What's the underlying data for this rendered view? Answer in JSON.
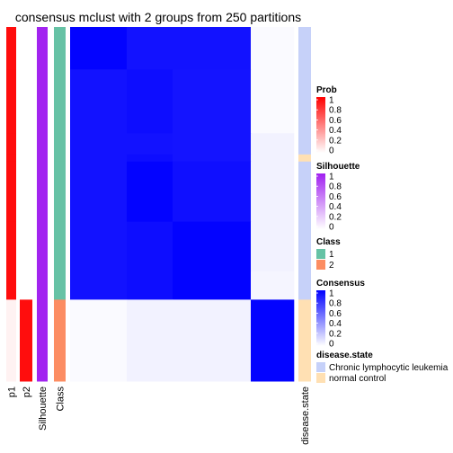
{
  "chart_data": {
    "type": "heatmap",
    "title": "consensus mclust with 2 groups from 250 partitions",
    "row_groups": [
      {
        "class": 1,
        "size": 0.12,
        "consensus": [
          0.99,
          0.93,
          0.93,
          0.02,
          0.02
        ],
        "prob_p1": 0.95,
        "prob_p2": 0.0,
        "silhouette": 0.98,
        "disease_state": "top"
      },
      {
        "class": 1,
        "size": 0.18,
        "consensus": [
          0.93,
          0.95,
          0.92,
          0.02,
          0.02
        ],
        "prob_p1": 0.95,
        "prob_p2": 0.0,
        "silhouette": 0.98,
        "disease_state": "blue"
      },
      {
        "class": 1,
        "size": 0.06,
        "consensus": [
          0.93,
          0.93,
          0.92,
          0.05,
          0.05
        ],
        "prob_p1": 0.95,
        "prob_p2": 0.0,
        "silhouette": 0.98,
        "disease_state": "blue"
      },
      {
        "class": 1,
        "size": 0.02,
        "consensus": [
          0.93,
          0.95,
          0.92,
          0.05,
          0.05
        ],
        "prob_p1": 0.95,
        "prob_p2": 0.0,
        "silhouette": 0.98,
        "disease_state": "peach"
      },
      {
        "class": 1,
        "size": 0.17,
        "consensus": [
          0.93,
          0.99,
          0.94,
          0.05,
          0.05
        ],
        "prob_p1": 0.95,
        "prob_p2": 0.0,
        "silhouette": 0.98,
        "disease_state": "blue"
      },
      {
        "class": 1,
        "size": 0.14,
        "consensus": [
          0.93,
          0.95,
          0.99,
          0.05,
          0.05
        ],
        "prob_p1": 0.95,
        "prob_p2": 0.0,
        "silhouette": 0.98,
        "disease_state": "blue"
      },
      {
        "class": 1,
        "size": 0.08,
        "consensus": [
          0.93,
          0.95,
          0.99,
          0.04,
          0.04
        ],
        "prob_p1": 0.95,
        "prob_p2": 0.0,
        "silhouette": 0.98,
        "disease_state": "blue"
      },
      {
        "class": 2,
        "size": 0.23,
        "consensus": [
          0.02,
          0.05,
          0.05,
          0.99,
          0.0
        ],
        "prob_p1": 0.05,
        "prob_p2": 0.95,
        "silhouette": 0.98,
        "disease_state": "peach"
      }
    ],
    "row_annotations": [
      "p1",
      "p2",
      "Silhouette",
      "Class"
    ],
    "col_annotation": "disease.state",
    "legends": [
      {
        "title": "Prob",
        "ticks": [
          "1",
          "0.8",
          "0.6",
          "0.4",
          "0.2",
          "0"
        ],
        "colors": [
          "#ff0000",
          "#ffffff"
        ]
      },
      {
        "title": "Silhouette",
        "ticks": [
          "1",
          "0.8",
          "0.6",
          "0.4",
          "0.2",
          "0"
        ],
        "colors": [
          "#a020f0",
          "#ffffff"
        ]
      },
      {
        "title": "Class",
        "items": [
          {
            "label": "1",
            "color": "#66c2a5"
          },
          {
            "label": "2",
            "color": "#fc8d62"
          }
        ]
      },
      {
        "title": "Consensus",
        "ticks": [
          "1",
          "0.8",
          "0.6",
          "0.4",
          "0.2",
          "0"
        ],
        "colors": [
          "#0000ff",
          "#ffffff"
        ]
      },
      {
        "title": "disease.state",
        "items": [
          {
            "label": "Chronic lymphocytic leukemia",
            "color": "#c6d1f9"
          },
          {
            "label": "normal control",
            "color": "#ffe0b3"
          }
        ]
      }
    ]
  }
}
